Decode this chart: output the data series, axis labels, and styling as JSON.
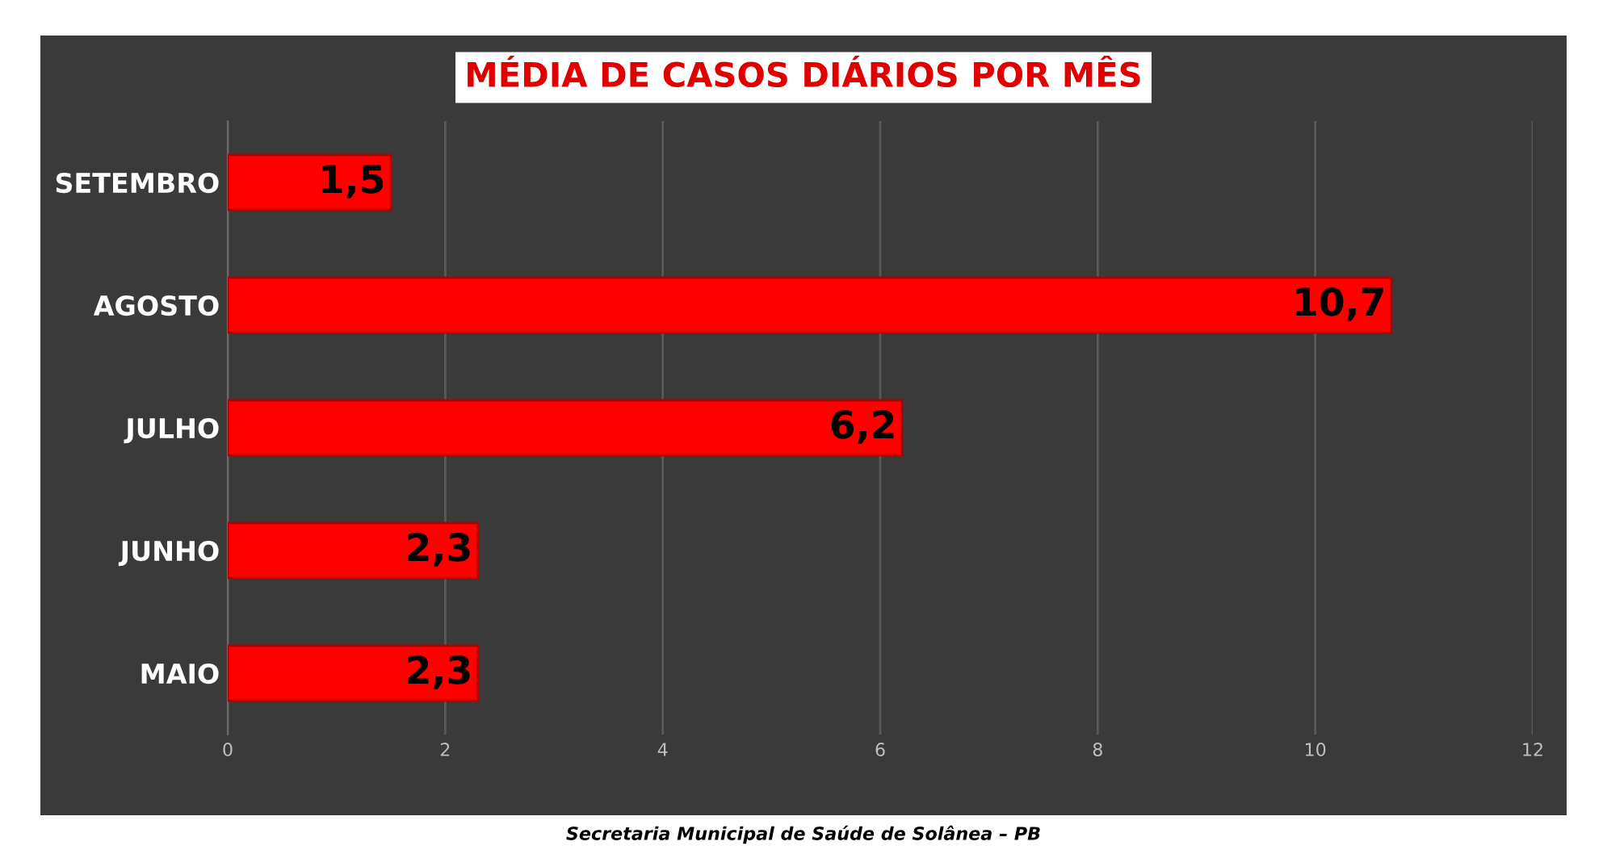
{
  "chart_data": {
    "type": "bar",
    "orientation": "horizontal",
    "title": "MÉDIA DE CASOS DIÁRIOS POR MÊS",
    "categories": [
      "SETEMBRO",
      "AGOSTO",
      "JULHO",
      "JUNHO",
      "MAIO"
    ],
    "values": [
      1.5,
      10.7,
      6.2,
      2.3,
      2.3
    ],
    "value_labels": [
      "1,5",
      "10,7",
      "6,2",
      "2,3",
      "2,3"
    ],
    "color": "#ff0000",
    "xlim": [
      0,
      12
    ],
    "xticks": [
      0,
      2,
      4,
      6,
      8,
      10,
      12
    ],
    "grid": "x",
    "annotations": [
      "Secretaria Municipal de Saúde de Solânea – PB"
    ]
  }
}
